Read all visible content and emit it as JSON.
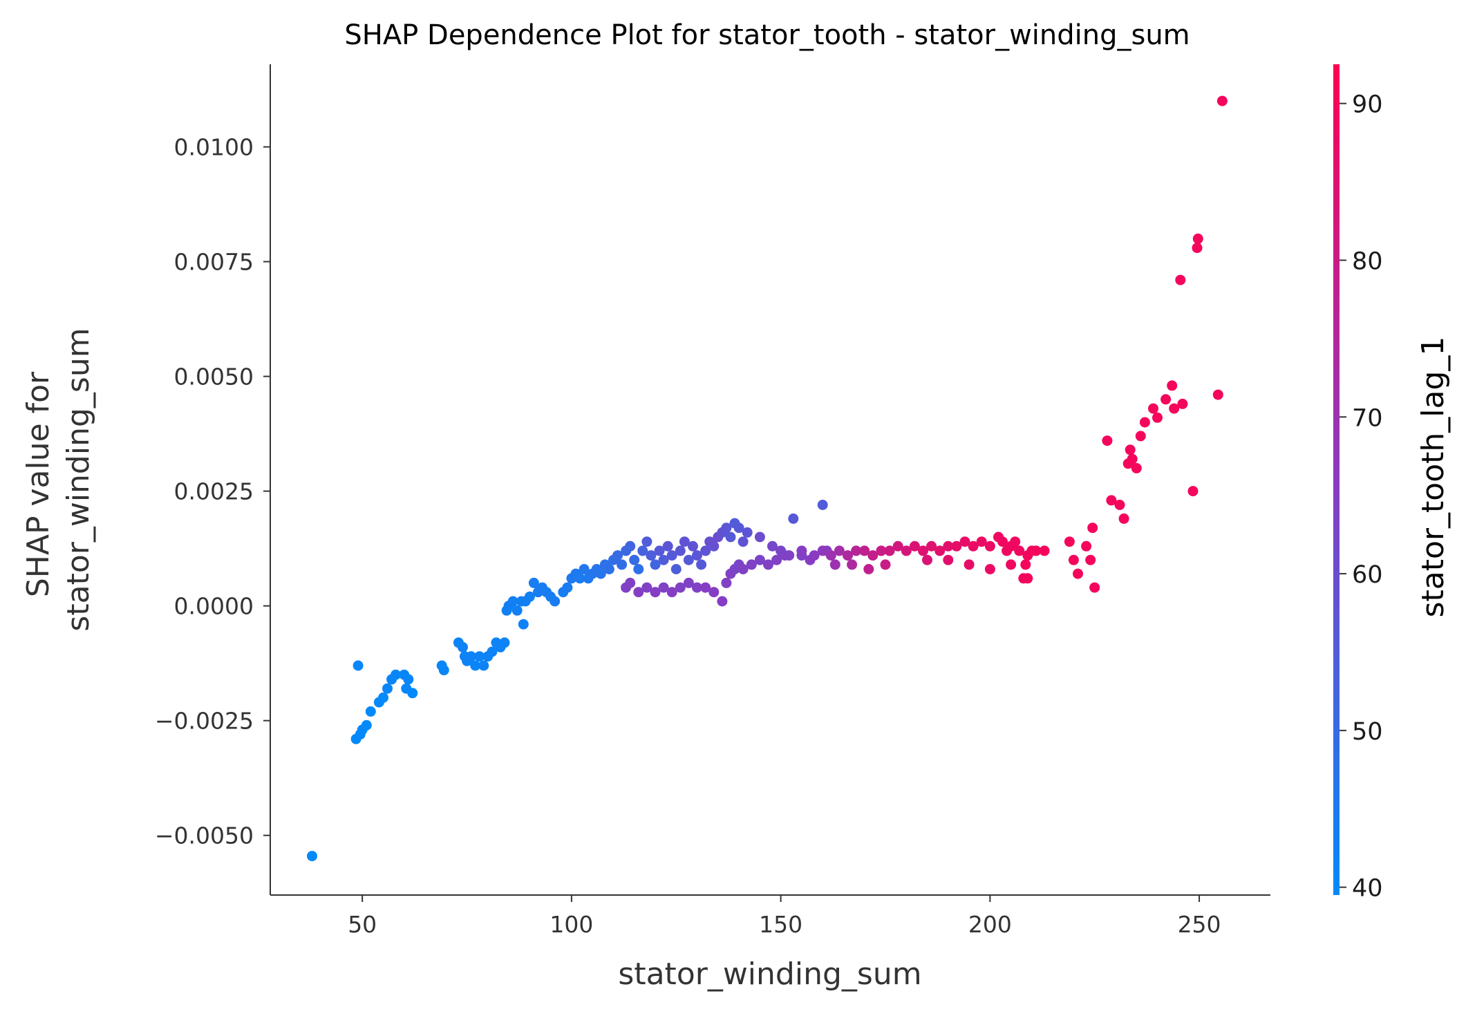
{
  "chart_data": {
    "type": "scatter",
    "title": "SHAP Dependence Plot for stator_tooth - stator_winding_sum",
    "xlabel": "stator_winding_sum",
    "ylabel": [
      "SHAP value for",
      "stator_winding_sum"
    ],
    "xlim": [
      28,
      267
    ],
    "ylim": [
      -0.0063,
      0.0118
    ],
    "x_ticks": [
      50,
      100,
      150,
      200,
      250
    ],
    "x_tick_labels": [
      "50",
      "100",
      "150",
      "200",
      "250"
    ],
    "y_ticks": [
      -0.005,
      -0.0025,
      0.0,
      0.0025,
      0.005,
      0.0075,
      0.01
    ],
    "y_tick_labels": [
      "−0.0050",
      "−0.0025",
      "0.0000",
      "0.0025",
      "0.0050",
      "0.0075",
      "0.0100"
    ],
    "grid": false,
    "colorbar": {
      "label": "stator_tooth_lag_1",
      "range": [
        39.5,
        92.5
      ],
      "ticks": [
        40,
        50,
        60,
        70,
        80,
        90
      ],
      "tick_labels": [
        "40",
        "50",
        "60",
        "70",
        "80",
        "90"
      ],
      "color_low": "#008afb",
      "color_mid": "#8a3bc1",
      "color_high": "#ff0051"
    },
    "points": [
      [
        38.0,
        -0.00545,
        40
      ],
      [
        49.0,
        -0.0013,
        41
      ],
      [
        48.5,
        -0.0029,
        40
      ],
      [
        49.5,
        -0.0028,
        40
      ],
      [
        50.0,
        -0.0027,
        40
      ],
      [
        51.0,
        -0.0026,
        40
      ],
      [
        52.0,
        -0.0023,
        40
      ],
      [
        54.0,
        -0.0021,
        40
      ],
      [
        55.0,
        -0.002,
        40
      ],
      [
        56.0,
        -0.0018,
        41
      ],
      [
        57.0,
        -0.0016,
        41
      ],
      [
        58.0,
        -0.0015,
        41
      ],
      [
        60.0,
        -0.0015,
        41
      ],
      [
        61.0,
        -0.0016,
        41
      ],
      [
        60.5,
        -0.0018,
        41
      ],
      [
        62.0,
        -0.0019,
        40
      ],
      [
        69.0,
        -0.0013,
        41
      ],
      [
        69.5,
        -0.0014,
        41
      ],
      [
        73.0,
        -0.0008,
        42
      ],
      [
        74.0,
        -0.0009,
        42
      ],
      [
        74.5,
        -0.0011,
        42
      ],
      [
        75.0,
        -0.0012,
        42
      ],
      [
        76.0,
        -0.0011,
        42
      ],
      [
        77.0,
        -0.0013,
        41
      ],
      [
        78.0,
        -0.0011,
        42
      ],
      [
        79.0,
        -0.0013,
        42
      ],
      [
        80.0,
        -0.0011,
        42
      ],
      [
        81.0,
        -0.001,
        42
      ],
      [
        82.0,
        -0.0008,
        42
      ],
      [
        83.0,
        -0.0009,
        42
      ],
      [
        84.0,
        -0.0008,
        42
      ],
      [
        84.5,
        -0.0001,
        43
      ],
      [
        85.0,
        0.0,
        43
      ],
      [
        86.0,
        0.0001,
        43
      ],
      [
        87.0,
        -0.0001,
        43
      ],
      [
        88.0,
        0.0001,
        43
      ],
      [
        88.5,
        -0.0004,
        42
      ],
      [
        89.0,
        0.0001,
        43
      ],
      [
        90.0,
        0.0002,
        43
      ],
      [
        91.0,
        0.0005,
        44
      ],
      [
        92.0,
        0.0003,
        44
      ],
      [
        93.0,
        0.0004,
        44
      ],
      [
        94.0,
        0.0003,
        44
      ],
      [
        95.0,
        0.0002,
        44
      ],
      [
        96.0,
        0.0001,
        44
      ],
      [
        98.0,
        0.0003,
        44
      ],
      [
        99.0,
        0.0004,
        44
      ],
      [
        100.0,
        0.0006,
        45
      ],
      [
        101.0,
        0.0007,
        45
      ],
      [
        102.0,
        0.0006,
        45
      ],
      [
        103.0,
        0.0008,
        46
      ],
      [
        104.0,
        0.0006,
        45
      ],
      [
        105.0,
        0.0007,
        46
      ],
      [
        106.0,
        0.0008,
        47
      ],
      [
        107.0,
        0.0007,
        47
      ],
      [
        108.0,
        0.0009,
        48
      ],
      [
        109.0,
        0.0008,
        48
      ],
      [
        110.0,
        0.001,
        49
      ],
      [
        111.0,
        0.0011,
        50
      ],
      [
        112.0,
        0.0009,
        49
      ],
      [
        113.0,
        0.0012,
        51
      ],
      [
        114.0,
        0.0013,
        52
      ],
      [
        115.0,
        0.001,
        50
      ],
      [
        116.0,
        0.0008,
        48
      ],
      [
        117.0,
        0.0012,
        53
      ],
      [
        118.0,
        0.0014,
        55
      ],
      [
        119.0,
        0.0011,
        54
      ],
      [
        120.0,
        0.0009,
        52
      ],
      [
        121.0,
        0.0012,
        56
      ],
      [
        122.0,
        0.001,
        55
      ],
      [
        123.0,
        0.0013,
        57
      ],
      [
        124.0,
        0.0011,
        56
      ],
      [
        125.0,
        0.0008,
        54
      ],
      [
        126.0,
        0.0012,
        57
      ],
      [
        127.0,
        0.0014,
        58
      ],
      [
        128.0,
        0.001,
        56
      ],
      [
        129.0,
        0.0013,
        58
      ],
      [
        130.0,
        0.0011,
        57
      ],
      [
        131.0,
        0.0009,
        56
      ],
      [
        132.0,
        0.0012,
        58
      ],
      [
        133.0,
        0.0014,
        59
      ],
      [
        134.0,
        0.0013,
        59
      ],
      [
        135.0,
        0.0015,
        60
      ],
      [
        136.0,
        0.0016,
        58
      ],
      [
        137.0,
        0.0017,
        57
      ],
      [
        138.0,
        0.0015,
        56
      ],
      [
        139.0,
        0.0018,
        55
      ],
      [
        140.0,
        0.0017,
        56
      ],
      [
        141.0,
        0.0014,
        58
      ],
      [
        142.0,
        0.0016,
        57
      ],
      [
        113.0,
        0.0004,
        64
      ],
      [
        114.0,
        0.0005,
        64
      ],
      [
        116.0,
        0.0003,
        65
      ],
      [
        118.0,
        0.0004,
        64
      ],
      [
        120.0,
        0.0003,
        65
      ],
      [
        122.0,
        0.0004,
        64
      ],
      [
        124.0,
        0.0003,
        65
      ],
      [
        126.0,
        0.0004,
        64
      ],
      [
        128.0,
        0.0005,
        64
      ],
      [
        130.0,
        0.0004,
        64
      ],
      [
        132.0,
        0.0004,
        65
      ],
      [
        134.0,
        0.0003,
        65
      ],
      [
        136.0,
        0.0001,
        65
      ],
      [
        137.0,
        0.0005,
        64
      ],
      [
        138.0,
        0.0007,
        64
      ],
      [
        139.0,
        0.0008,
        63
      ],
      [
        140.0,
        0.0009,
        63
      ],
      [
        141.0,
        0.0008,
        64
      ],
      [
        143.0,
        0.0009,
        64
      ],
      [
        145.0,
        0.001,
        63
      ],
      [
        147.0,
        0.0009,
        64
      ],
      [
        149.0,
        0.001,
        64
      ],
      [
        151.0,
        0.0011,
        64
      ],
      [
        153.0,
        0.0019,
        56
      ],
      [
        155.0,
        0.0011,
        64
      ],
      [
        157.0,
        0.001,
        65
      ],
      [
        160.0,
        0.0022,
        55
      ],
      [
        161.0,
        0.0012,
        65
      ],
      [
        145.0,
        0.0015,
        60
      ],
      [
        148.0,
        0.0013,
        62
      ],
      [
        150.0,
        0.0012,
        63
      ],
      [
        152.0,
        0.0011,
        64
      ],
      [
        155.0,
        0.0012,
        65
      ],
      [
        158.0,
        0.0011,
        66
      ],
      [
        160.0,
        0.0012,
        67
      ],
      [
        162.0,
        0.0011,
        70
      ],
      [
        164.0,
        0.0012,
        72
      ],
      [
        166.0,
        0.0011,
        74
      ],
      [
        168.0,
        0.0012,
        76
      ],
      [
        170.0,
        0.0012,
        78
      ],
      [
        172.0,
        0.0011,
        79
      ],
      [
        174.0,
        0.0012,
        80
      ],
      [
        176.0,
        0.0012,
        81
      ],
      [
        178.0,
        0.0013,
        82
      ],
      [
        180.0,
        0.0012,
        83
      ],
      [
        182.0,
        0.0013,
        84
      ],
      [
        184.0,
        0.0012,
        85
      ],
      [
        186.0,
        0.0013,
        85
      ],
      [
        188.0,
        0.0012,
        86
      ],
      [
        190.0,
        0.0013,
        86
      ],
      [
        192.0,
        0.0013,
        87
      ],
      [
        194.0,
        0.0014,
        87
      ],
      [
        196.0,
        0.0013,
        88
      ],
      [
        198.0,
        0.0014,
        88
      ],
      [
        200.0,
        0.0013,
        88
      ],
      [
        202.0,
        0.0015,
        89
      ],
      [
        203.0,
        0.0014,
        89
      ],
      [
        204.0,
        0.0012,
        89
      ],
      [
        205.0,
        0.0013,
        89
      ],
      [
        206.0,
        0.0014,
        89
      ],
      [
        207.0,
        0.0012,
        89
      ],
      [
        208.0,
        0.0006,
        90
      ],
      [
        209.0,
        0.0011,
        90
      ],
      [
        210.0,
        0.0012,
        90
      ],
      [
        211.0,
        0.0012,
        90
      ],
      [
        213.0,
        0.0012,
        90
      ],
      [
        163.0,
        0.0009,
        70
      ],
      [
        167.0,
        0.0009,
        74
      ],
      [
        171.0,
        0.0008,
        78
      ],
      [
        175.0,
        0.0009,
        80
      ],
      [
        185.0,
        0.001,
        84
      ],
      [
        190.0,
        0.001,
        86
      ],
      [
        195.0,
        0.0009,
        87
      ],
      [
        200.0,
        0.0008,
        88
      ],
      [
        205.0,
        0.0009,
        89
      ],
      [
        209.0,
        0.0006,
        90
      ],
      [
        208.5,
        0.0009,
        90
      ],
      [
        219.0,
        0.0014,
        90
      ],
      [
        220.0,
        0.001,
        90
      ],
      [
        221.0,
        0.0007,
        90
      ],
      [
        223.0,
        0.0013,
        90
      ],
      [
        224.0,
        0.001,
        90
      ],
      [
        225.0,
        0.0004,
        90
      ],
      [
        224.5,
        0.0017,
        90
      ],
      [
        228.0,
        0.0036,
        90
      ],
      [
        229.0,
        0.0023,
        90
      ],
      [
        231.0,
        0.0022,
        90
      ],
      [
        232.0,
        0.0019,
        90
      ],
      [
        233.0,
        0.0031,
        90
      ],
      [
        233.5,
        0.0034,
        90
      ],
      [
        234.0,
        0.0032,
        90
      ],
      [
        235.0,
        0.003,
        90
      ],
      [
        236.0,
        0.0037,
        90
      ],
      [
        237.0,
        0.004,
        90
      ],
      [
        239.0,
        0.0043,
        90
      ],
      [
        240.0,
        0.0041,
        90
      ],
      [
        242.0,
        0.0045,
        90
      ],
      [
        243.5,
        0.0048,
        90
      ],
      [
        244.0,
        0.0043,
        90
      ],
      [
        246.0,
        0.0044,
        90
      ],
      [
        245.5,
        0.0071,
        90
      ],
      [
        248.5,
        0.0025,
        90
      ],
      [
        249.5,
        0.0078,
        90
      ],
      [
        249.7,
        0.008,
        90
      ],
      [
        254.5,
        0.0046,
        90
      ],
      [
        255.5,
        0.011,
        90
      ]
    ]
  }
}
